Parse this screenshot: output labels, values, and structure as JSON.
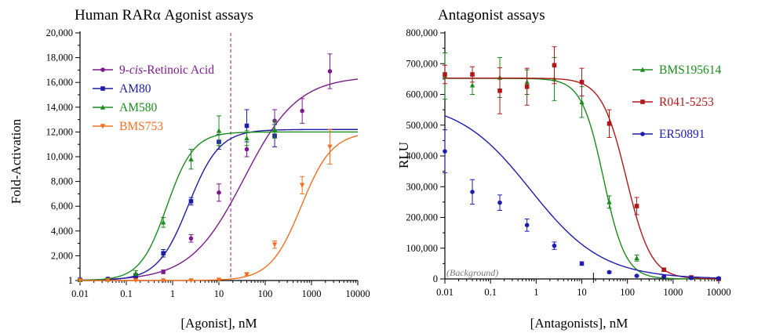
{
  "chart_data": [
    {
      "type": "scatter",
      "title": "Human RARα Agonist assays",
      "xlabel": "[Agonist], nM",
      "ylabel": "Fold-Activation",
      "xscale": "log",
      "xlim": [
        0.01,
        10000
      ],
      "ylim": [
        1,
        20000
      ],
      "x_ticks": [
        0.01,
        0.1,
        1,
        10,
        100,
        1000,
        10000
      ],
      "x_tick_labels": [
        "0.01",
        "0.1",
        "1",
        "10",
        "100",
        "1000",
        "10000"
      ],
      "y_ticks": [
        1,
        2000,
        4000,
        6000,
        8000,
        10000,
        12000,
        14000,
        16000,
        18000,
        20000
      ],
      "y_tick_labels": [
        "1",
        "2,000",
        "4,000",
        "6,000",
        "8,000",
        "10,000",
        "12,000",
        "14,000",
        "16,000",
        "18,000",
        "20,000"
      ],
      "reference_line_x": 18,
      "background_y": 1,
      "legend_position": "upper-left",
      "series": [
        {
          "name": "9-cis-Retinoic Acid",
          "name_parts": [
            "9-",
            "cis",
            "-Retinoic Acid"
          ],
          "color": "#7b1a8c",
          "marker": "circle",
          "x": [
            0.01,
            0.04,
            0.16,
            0.63,
            2.5,
            10,
            40,
            160,
            630,
            2500
          ],
          "y": [
            100,
            150,
            300,
            700,
            3400,
            7100,
            10600,
            12900,
            13700,
            16900
          ],
          "err": [
            50,
            50,
            100,
            150,
            300,
            700,
            600,
            900,
            1000,
            1400
          ],
          "fit": {
            "bottom": 0,
            "top": 16500,
            "ec50": 35,
            "hill": 0.75
          }
        },
        {
          "name": "AM80",
          "color": "#1c1ca6",
          "marker": "square",
          "x": [
            0.01,
            0.04,
            0.16,
            0.63,
            2.5,
            10,
            40,
            160
          ],
          "y": [
            50,
            100,
            400,
            2200,
            6400,
            11200,
            12500,
            11700
          ],
          "err": [
            50,
            50,
            150,
            300,
            300,
            600,
            1300,
            900
          ],
          "fit": {
            "bottom": 0,
            "top": 12200,
            "ec50": 2.2,
            "hill": 1.3
          }
        },
        {
          "name": "AM580",
          "color": "#198c1c",
          "marker": "triangle",
          "x": [
            0.01,
            0.04,
            0.16,
            0.63,
            2.5,
            10,
            40,
            160
          ],
          "y": [
            50,
            100,
            600,
            4700,
            9800,
            12100,
            11500,
            12200
          ],
          "err": [
            50,
            50,
            200,
            400,
            800,
            1200,
            600,
            700
          ],
          "fit": {
            "bottom": 0,
            "top": 12000,
            "ec50": 0.75,
            "hill": 1.5
          }
        },
        {
          "name": "BMS753",
          "color": "#f07020",
          "marker": "triangle-down",
          "x": [
            0.01,
            0.04,
            0.16,
            0.63,
            2.5,
            10,
            40,
            160,
            630,
            2500
          ],
          "y": [
            0,
            0,
            0,
            0,
            0,
            50,
            500,
            2900,
            7700,
            10800
          ],
          "err": [
            0,
            0,
            0,
            0,
            0,
            0,
            80,
            300,
            700,
            1400
          ],
          "fit": {
            "bottom": 0,
            "top": 12000,
            "ec50": 600,
            "hill": 1.3
          }
        }
      ]
    },
    {
      "type": "scatter",
      "title": "Antagonist assays",
      "xlabel": "[Antagonists], nM",
      "ylabel": "RLU",
      "xscale": "log",
      "xlim": [
        0.01,
        10000
      ],
      "ylim": [
        0,
        800000
      ],
      "x_ticks": [
        0.01,
        0.1,
        1,
        10,
        100,
        1000,
        10000
      ],
      "x_tick_labels": [
        "0.01",
        "0.1",
        "1",
        "10",
        "100",
        "1000",
        "10000"
      ],
      "y_ticks": [
        0,
        100000,
        200000,
        300000,
        400000,
        500000,
        600000,
        700000,
        800000
      ],
      "y_tick_labels": [
        "0",
        "100,000",
        "200,000",
        "300,000",
        "400,000",
        "500,000",
        "600,000",
        "700,000",
        "800,000"
      ],
      "reference_line_x": 18,
      "background_y": 0,
      "background_label": "(Background)",
      "legend_position": "right",
      "series": [
        {
          "name": "BMS195614",
          "color": "#198c1c",
          "marker": "triangle",
          "x": [
            0.01,
            0.04,
            0.16,
            0.63,
            2.5,
            10,
            40,
            160
          ],
          "y": [
            660000,
            630000,
            655000,
            640000,
            650000,
            575000,
            250000,
            68000
          ],
          "err": [
            75000,
            30000,
            65000,
            40000,
            70000,
            50000,
            20000,
            10000
          ],
          "fit": {
            "bottom": 0,
            "top": 652000,
            "ic50": 30,
            "hill": 1.8
          }
        },
        {
          "name": "R041-5253",
          "color": "#b01818",
          "marker": "square",
          "x": [
            0.01,
            0.04,
            0.16,
            0.63,
            2.5,
            10,
            40,
            160,
            630,
            2500,
            10000
          ],
          "y": [
            665000,
            665000,
            612000,
            625000,
            695000,
            640000,
            505000,
            237000,
            30000,
            5000,
            0
          ],
          "err": [
            30000,
            25000,
            75000,
            60000,
            60000,
            45000,
            45000,
            28000,
            5000,
            2000,
            0
          ],
          "fit": {
            "bottom": 0,
            "top": 653000,
            "ic50": 95,
            "hill": 1.6
          }
        },
        {
          "name": "ER50891",
          "color": "#1c1cb0",
          "marker": "circle",
          "x": [
            0.01,
            0.04,
            0.16,
            0.63,
            2.5,
            10,
            40,
            160,
            630,
            2500,
            10000
          ],
          "y": [
            415000,
            283000,
            248000,
            175000,
            108000,
            50000,
            22000,
            10000,
            8000,
            3000,
            2000
          ],
          "err": [
            70000,
            40000,
            25000,
            20000,
            12000,
            6000,
            3000,
            2000,
            1000,
            1000,
            1000
          ],
          "fit": {
            "bottom": 0,
            "top": 580000,
            "ic50": 0.75,
            "hill": 0.55
          }
        }
      ]
    }
  ]
}
